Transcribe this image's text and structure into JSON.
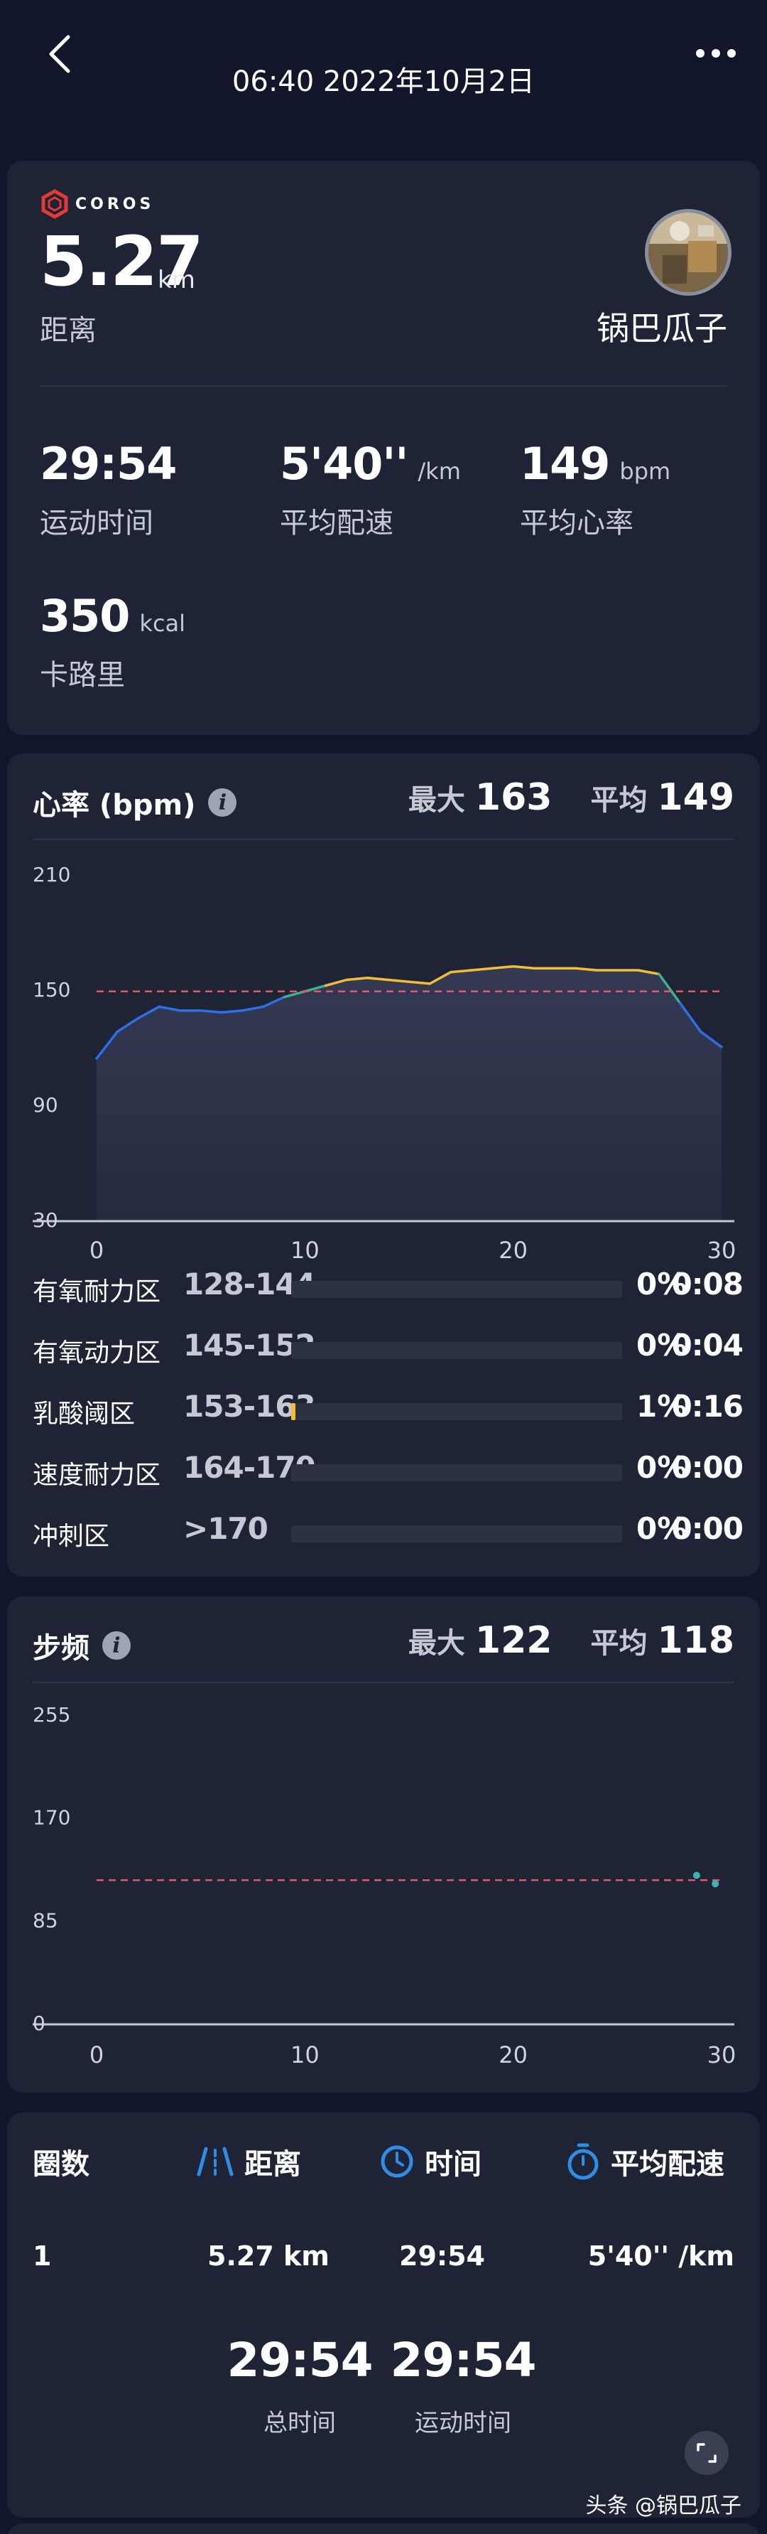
{
  "header": {
    "title": "06:40 2022年10月2日"
  },
  "summary": {
    "brand": "COROS",
    "distance_value": "5.27",
    "distance_unit": "km",
    "distance_label": "距离",
    "user_name": "锅巴瓜子",
    "stats": [
      {
        "value": "29:54",
        "unit": "",
        "label": "运动时间"
      },
      {
        "value": "5'40''",
        "unit": "/km",
        "label": "平均配速"
      },
      {
        "value": "149",
        "unit": "bpm",
        "label": "平均心率"
      },
      {
        "value": "350",
        "unit": "kcal",
        "label": "卡路里"
      }
    ]
  },
  "heart_rate": {
    "title": "心率 (bpm)",
    "max_label": "最大",
    "max_value": "163",
    "avg_label": "平均",
    "avg_value": "149",
    "y_ticks": [
      "210",
      "150",
      "90",
      "30"
    ],
    "x_ticks": [
      "0",
      "10",
      "20",
      "30"
    ],
    "zones": [
      {
        "name": "有氧耐力区",
        "range": "128-144",
        "pct": "0%",
        "time": "0:08",
        "fill": 0
      },
      {
        "name": "有氧动力区",
        "range": "145-152",
        "pct": "0%",
        "time": "0:04",
        "fill": 0
      },
      {
        "name": "乳酸阈区",
        "range": "153-163",
        "pct": "1%",
        "time": "0:16",
        "fill": 0.01
      },
      {
        "name": "速度耐力区",
        "range": "164-170",
        "pct": "0%",
        "time": "0:00",
        "fill": 0
      },
      {
        "name": "冲刺区",
        "range": ">170",
        "pct": "0%",
        "time": "0:00",
        "fill": 0
      }
    ],
    "colors": {
      "line_low": "#2f6fe6",
      "line_mid": "#3bb38f",
      "line_high": "#f2bc36",
      "avg_line": "#e05a6a"
    }
  },
  "cadence": {
    "title": "步频",
    "max_label": "最大",
    "max_value": "122",
    "avg_label": "平均",
    "avg_value": "118",
    "y_ticks": [
      "255",
      "170",
      "85",
      "0"
    ],
    "x_ticks": [
      "0",
      "10",
      "20",
      "30"
    ]
  },
  "laps": {
    "col_lap": "圈数",
    "col_distance": "距离",
    "col_time": "时间",
    "col_pace": "平均配速",
    "rows": [
      {
        "lap": "1",
        "distance": "5.27 km",
        "time": "29:54",
        "pace": "5'40'' /km"
      }
    ],
    "total_time_value": "29:54",
    "total_time_label": "总时间",
    "moving_time_value": "29:54",
    "moving_time_label": "运动时间"
  },
  "watermark": "头条 @锅巴瓜子",
  "chart_data": [
    {
      "type": "line",
      "title": "心率 (bpm)",
      "xlabel": "",
      "ylabel": "",
      "xlim": [
        0,
        30
      ],
      "ylim": [
        30,
        210
      ],
      "reference_line": 149,
      "x": [
        0,
        1,
        2,
        3,
        4,
        5,
        6,
        7,
        8,
        9,
        10,
        11,
        12,
        13,
        14,
        15,
        16,
        17,
        18,
        19,
        20,
        21,
        22,
        23,
        24,
        25,
        26,
        27,
        28,
        29,
        30
      ],
      "series": [
        {
          "values": [
            114,
            128,
            135,
            141,
            139,
            139,
            138,
            139,
            141,
            146,
            149,
            152,
            155,
            156,
            155,
            154,
            153,
            159,
            160,
            161,
            162,
            161,
            161,
            161,
            160,
            160,
            160,
            158,
            143,
            128,
            120
          ]
        }
      ]
    },
    {
      "type": "scatter",
      "title": "步频",
      "xlabel": "",
      "ylabel": "",
      "xlim": [
        0,
        30
      ],
      "ylim": [
        0,
        255
      ],
      "reference_line": 118,
      "x": [
        28.8,
        29.7
      ],
      "series": [
        {
          "values": [
            122,
            115
          ]
        }
      ]
    }
  ]
}
